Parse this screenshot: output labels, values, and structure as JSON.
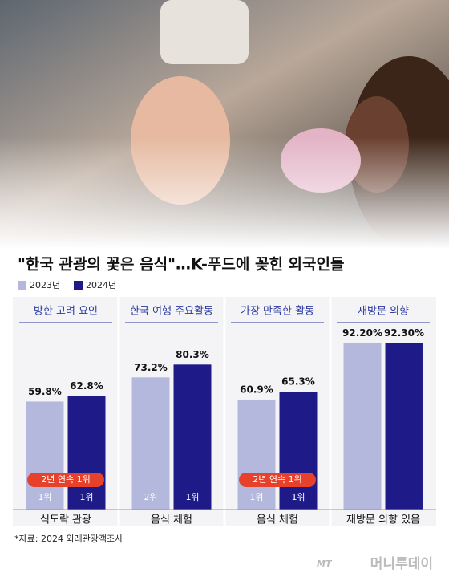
{
  "chart_data": {
    "type": "bar",
    "title": "\"한국 관광의 꽃은 음식\"…K-푸드에 꽂힌 외국인들",
    "groups": [
      "방한 고려 요인",
      "한국 여행 주요활동",
      "가장 만족한 활동",
      "재방문 의향"
    ],
    "categories": [
      "식도락 관광",
      "음식 체험",
      "음식 체험",
      "재방문 의향 있음"
    ],
    "badges": [
      "2년 연속 1위",
      null,
      "2년 연속 1위",
      null
    ],
    "series": [
      {
        "name": "2023년",
        "color": "#b4b8dc",
        "values": [
          59.8,
          73.2,
          60.9,
          92.2
        ],
        "value_labels": [
          "59.8%",
          "73.2%",
          "60.9%",
          "92.20%"
        ],
        "rank_labels": [
          "1위",
          "2위",
          "1위",
          null
        ]
      },
      {
        "name": "2024년",
        "color": "#1e1a88",
        "values": [
          62.8,
          80.3,
          65.3,
          92.3
        ],
        "value_labels": [
          "62.8%",
          "80.3%",
          "65.3%",
          "92.30%"
        ],
        "rank_labels": [
          "1위",
          "1위",
          "1위",
          null
        ]
      }
    ],
    "ylim": [
      0,
      100
    ],
    "source": "*자료: 2024 외래관광객조사",
    "credit": "머니투데이"
  }
}
